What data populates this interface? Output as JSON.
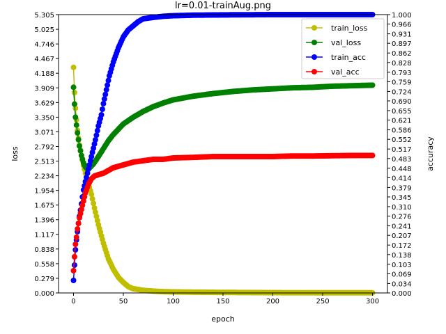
{
  "chart_data": {
    "type": "line",
    "title": "lr=0.01-trainAug.png",
    "xlabel": "epoch",
    "ylabel_left": "loss",
    "ylabel_right": "accuracy",
    "xlim": [
      -15,
      315
    ],
    "ylim_left": [
      0,
      5.305
    ],
    "ylim_right": [
      0,
      1.0
    ],
    "x_ticks": [
      0,
      50,
      100,
      150,
      200,
      250,
      300
    ],
    "x_tick_labels": [
      "0",
      "50",
      "100",
      "150",
      "200",
      "250",
      "300"
    ],
    "left_ticks": [
      0.0,
      0.279,
      0.558,
      0.838,
      1.117,
      1.396,
      1.675,
      1.954,
      2.234,
      2.513,
      2.792,
      3.071,
      3.35,
      3.629,
      3.909,
      4.188,
      4.467,
      4.746,
      5.025,
      5.305
    ],
    "left_tick_labels": [
      "0.000",
      "0.279",
      "0.558",
      "0.838",
      "1.117",
      "1.396",
      "1.675",
      "1.954",
      "2.234",
      "2.513",
      "2.792",
      "3.071",
      "3.350",
      "3.629",
      "3.909",
      "4.188",
      "4.467",
      "4.746",
      "5.025",
      "5.305"
    ],
    "right_ticks": [
      0.0,
      0.034,
      0.069,
      0.103,
      0.138,
      0.172,
      0.207,
      0.241,
      0.276,
      0.31,
      0.345,
      0.379,
      0.414,
      0.448,
      0.483,
      0.517,
      0.552,
      0.586,
      0.621,
      0.655,
      0.69,
      0.724,
      0.759,
      0.793,
      0.828,
      0.862,
      0.897,
      0.931,
      0.966,
      1.0
    ],
    "right_tick_labels": [
      "0.000",
      "0.034",
      "0.069",
      "0.103",
      "0.138",
      "0.172",
      "0.207",
      "0.241",
      "0.276",
      "0.310",
      "0.345",
      "0.379",
      "0.414",
      "0.448",
      "0.483",
      "0.517",
      "0.552",
      "0.586",
      "0.621",
      "0.655",
      "0.690",
      "0.724",
      "0.759",
      "0.793",
      "0.828",
      "0.862",
      "0.897",
      "0.931",
      "0.966",
      "1.000"
    ],
    "legend_position": "top-right",
    "series": [
      {
        "name": "train_loss",
        "axis": "left",
        "color": "#bfbf00",
        "x": [
          0,
          1,
          2,
          3,
          4,
          5,
          6,
          8,
          10,
          12,
          15,
          18,
          21,
          25,
          30,
          35,
          40,
          45,
          50,
          55,
          60,
          70,
          80,
          90,
          100,
          120,
          150,
          200,
          250,
          300
        ],
        "y": [
          4.3,
          3.82,
          3.52,
          3.3,
          3.1,
          2.95,
          2.82,
          2.62,
          2.43,
          2.28,
          2.08,
          1.88,
          1.62,
          1.3,
          0.95,
          0.65,
          0.45,
          0.3,
          0.2,
          0.12,
          0.08,
          0.05,
          0.035,
          0.025,
          0.02,
          0.015,
          0.01,
          0.005,
          0.003,
          0.002
        ]
      },
      {
        "name": "val_loss",
        "axis": "left",
        "color": "#008000",
        "x": [
          0,
          1,
          2,
          3,
          4,
          5,
          6,
          8,
          10,
          12,
          14,
          16,
          18,
          20,
          25,
          30,
          35,
          40,
          45,
          50,
          60,
          70,
          80,
          90,
          100,
          120,
          140,
          160,
          180,
          200,
          220,
          240,
          260,
          280,
          300
        ],
        "y": [
          3.92,
          3.6,
          3.35,
          3.2,
          3.05,
          2.92,
          2.8,
          2.62,
          2.48,
          2.4,
          2.36,
          2.38,
          2.42,
          2.46,
          2.6,
          2.75,
          2.9,
          3.02,
          3.12,
          3.22,
          3.35,
          3.46,
          3.55,
          3.62,
          3.68,
          3.75,
          3.8,
          3.84,
          3.87,
          3.89,
          3.91,
          3.92,
          3.94,
          3.95,
          3.96
        ]
      },
      {
        "name": "train_acc",
        "axis": "right",
        "color": "#0000ff",
        "x": [
          0,
          1,
          2,
          3,
          4,
          5,
          6,
          8,
          10,
          12,
          14,
          16,
          18,
          20,
          22,
          25,
          28,
          30,
          33,
          36,
          40,
          45,
          50,
          55,
          60,
          65,
          70,
          80,
          90,
          100,
          120,
          150,
          200,
          250,
          300
        ],
        "y": [
          0.045,
          0.1,
          0.155,
          0.19,
          0.22,
          0.25,
          0.275,
          0.32,
          0.37,
          0.4,
          0.43,
          0.46,
          0.49,
          0.52,
          0.55,
          0.6,
          0.64,
          0.68,
          0.73,
          0.78,
          0.83,
          0.88,
          0.92,
          0.945,
          0.96,
          0.975,
          0.985,
          0.99,
          0.994,
          0.996,
          0.998,
          0.999,
          1.0,
          1.0,
          1.0
        ]
      },
      {
        "name": "val_acc",
        "axis": "right",
        "color": "#ff0000",
        "x": [
          0,
          1,
          2,
          3,
          4,
          5,
          6,
          8,
          10,
          12,
          15,
          18,
          21,
          25,
          30,
          35,
          40,
          50,
          60,
          70,
          80,
          90,
          100,
          120,
          140,
          160,
          180,
          200,
          220,
          240,
          260,
          280,
          300
        ],
        "y": [
          0.08,
          0.13,
          0.175,
          0.2,
          0.23,
          0.25,
          0.27,
          0.3,
          0.33,
          0.36,
          0.39,
          0.41,
          0.42,
          0.425,
          0.43,
          0.44,
          0.45,
          0.46,
          0.47,
          0.475,
          0.48,
          0.48,
          0.485,
          0.487,
          0.49,
          0.49,
          0.49,
          0.49,
          0.492,
          0.492,
          0.493,
          0.494,
          0.494
        ]
      }
    ]
  }
}
